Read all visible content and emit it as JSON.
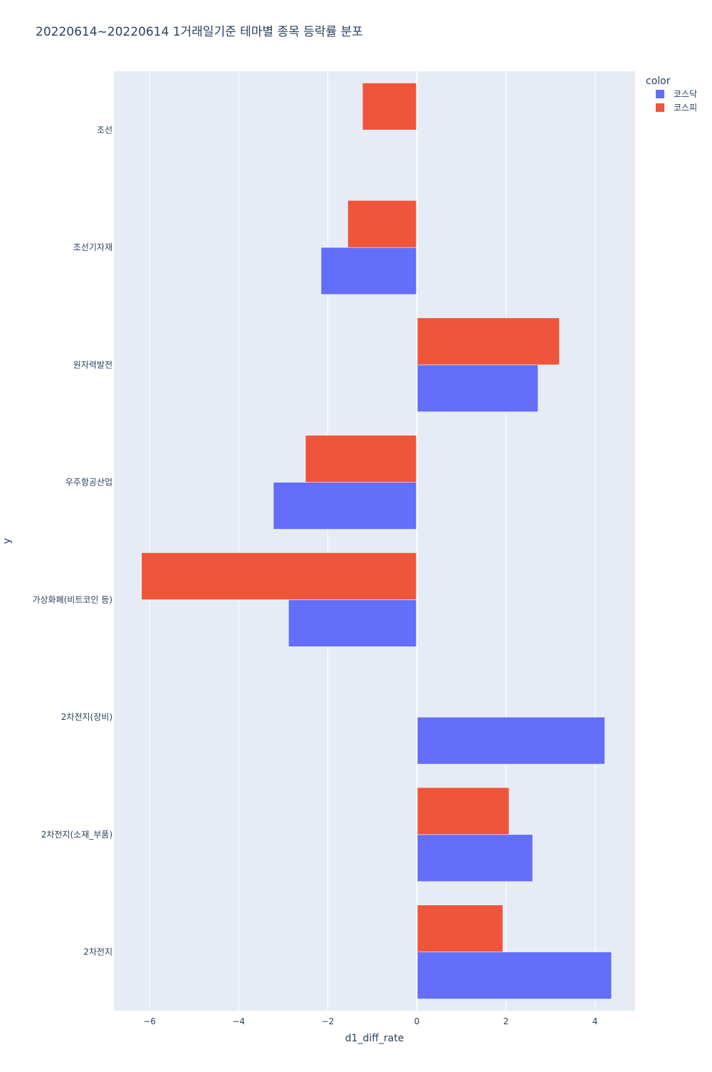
{
  "chart_data": {
    "type": "bar",
    "orientation": "horizontal",
    "barmode": "group",
    "title": "20220614~20220614 1거래일기준 테마별 종목 등락률 분포",
    "xlabel": "d1_diff_rate",
    "ylabel": "y",
    "xlim": [
      -6.8,
      4.9
    ],
    "xticks": [
      -6,
      -4,
      -2,
      0,
      2,
      4
    ],
    "xtick_labels": [
      "−6",
      "−4",
      "−2",
      "0",
      "2",
      "4"
    ],
    "grid": true,
    "legend": {
      "title": "color",
      "position": "top-right"
    },
    "categories": [
      "조선",
      "조선기자재",
      "원자력발전",
      "우주항공산업",
      "가상화폐(비트코인 등)",
      "2차전지(장비)",
      "2차전지(소재_부품)",
      "2차전지"
    ],
    "series": [
      {
        "name": "코스닥",
        "color": "#636efa",
        "values": [
          null,
          -2.15,
          2.72,
          -3.22,
          -2.88,
          4.22,
          2.6,
          4.37
        ]
      },
      {
        "name": "코스피",
        "color": "#ef553b",
        "values": [
          -1.22,
          -1.55,
          3.2,
          -2.5,
          -6.18,
          null,
          2.07,
          1.93
        ]
      }
    ]
  }
}
